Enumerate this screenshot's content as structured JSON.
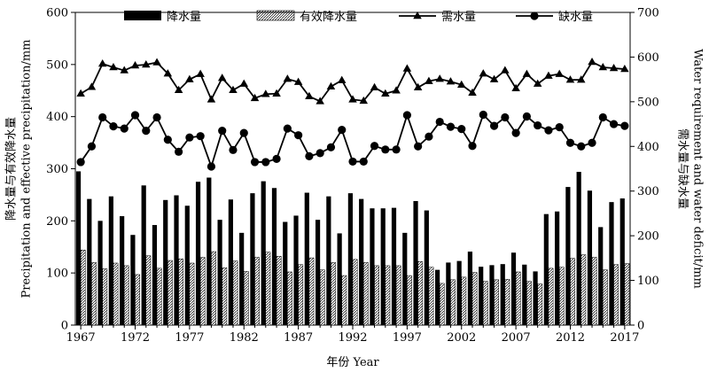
{
  "chart_data": {
    "type": "bar",
    "xlabel": "年份 Year",
    "ylabel_left": [
      "降水量与有效降水量",
      "Precipitation and effective precipitation/mm"
    ],
    "ylabel_right": [
      "需水量与缺水量",
      "Water requirement and water deficit/mm"
    ],
    "ylim_left": [
      0,
      600
    ],
    "ylim_right": [
      0,
      700
    ],
    "yticks_left": [
      0,
      100,
      200,
      300,
      400,
      500,
      600
    ],
    "yticks_right": [
      0,
      100,
      200,
      300,
      400,
      500,
      600,
      700
    ],
    "xticks": [
      1967,
      1972,
      1977,
      1982,
      1987,
      1992,
      1997,
      2002,
      2007,
      2012,
      2017
    ],
    "grid": false,
    "legend_position": "top",
    "years": [
      1967,
      1968,
      1969,
      1970,
      1971,
      1972,
      1973,
      1974,
      1975,
      1976,
      1977,
      1978,
      1979,
      1980,
      1981,
      1982,
      1983,
      1984,
      1985,
      1986,
      1987,
      1988,
      1989,
      1990,
      1991,
      1992,
      1993,
      1994,
      1995,
      1996,
      1997,
      1998,
      1999,
      2000,
      2001,
      2002,
      2003,
      2004,
      2005,
      2006,
      2007,
      2008,
      2009,
      2010,
      2011,
      2012,
      2013,
      2014,
      2015,
      2016,
      2017
    ],
    "series": [
      {
        "name": "降水量",
        "axis": "left",
        "style": "bar-solid",
        "values": [
          295,
          242,
          200,
          247,
          209,
          173,
          268,
          192,
          240,
          249,
          229,
          275,
          283,
          202,
          241,
          177,
          253,
          276,
          263,
          198,
          210,
          254,
          202,
          247,
          176,
          253,
          242,
          224,
          224,
          225,
          177,
          238,
          220,
          106,
          120,
          123,
          141,
          112,
          115,
          117,
          139,
          116,
          103,
          213,
          218,
          265,
          294,
          258,
          188,
          236,
          243
        ]
      },
      {
        "name": "有效降水量",
        "axis": "left",
        "style": "bar-hatched",
        "values": [
          144,
          120,
          108,
          119,
          114,
          97,
          133,
          109,
          124,
          127,
          119,
          130,
          141,
          110,
          123,
          103,
          130,
          140,
          132,
          102,
          116,
          129,
          106,
          120,
          95,
          126,
          120,
          114,
          114,
          114,
          95,
          122,
          111,
          80,
          87,
          92,
          101,
          84,
          87,
          88,
          102,
          84,
          79,
          109,
          111,
          128,
          135,
          130,
          106,
          116,
          118
        ]
      },
      {
        "name": "需水量",
        "axis": "right",
        "style": "line-triangle",
        "values": [
          518,
          533,
          585,
          577,
          570,
          581,
          583,
          588,
          563,
          526,
          550,
          562,
          505,
          553,
          526,
          540,
          508,
          517,
          518,
          551,
          544,
          512,
          501,
          534,
          548,
          505,
          502,
          532,
          518,
          525,
          574,
          532,
          546,
          551,
          545,
          538,
          520,
          563,
          550,
          570,
          530,
          562,
          540,
          558,
          562,
          549,
          549,
          589,
          577,
          575,
          573
        ]
      },
      {
        "name": "缺水量",
        "axis": "right",
        "style": "line-circle",
        "values": [
          365,
          400,
          465,
          445,
          440,
          470,
          435,
          465,
          415,
          388,
          420,
          423,
          355,
          435,
          392,
          430,
          365,
          365,
          372,
          440,
          425,
          378,
          385,
          398,
          437,
          366,
          366,
          401,
          393,
          393,
          470,
          400,
          422,
          455,
          444,
          439,
          401,
          471,
          446,
          465,
          430,
          467,
          447,
          436,
          443,
          408,
          400,
          408,
          465,
          450,
          446
        ]
      }
    ]
  }
}
